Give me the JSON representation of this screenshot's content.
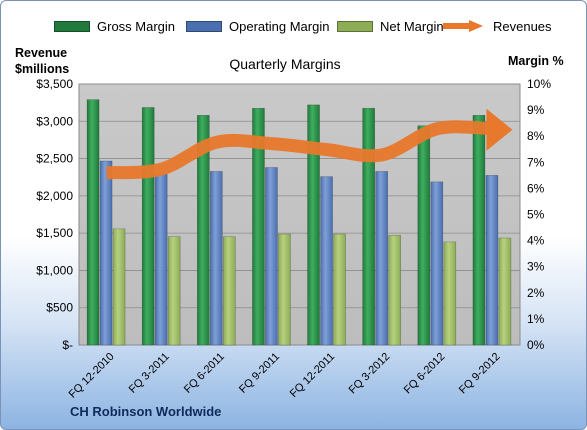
{
  "chart_data": {
    "type": "bar",
    "title": "Quarterly Margins",
    "left_axis_label_line1": "Revenue",
    "left_axis_label_line2": "$millions",
    "right_axis_label": "Margin %",
    "categories": [
      "FQ 12-2010",
      "FQ 3-2011",
      "FQ 6-2011",
      "FQ 9-2011",
      "FQ 12-2011",
      "FQ 3-2012",
      "FQ 6-2012",
      "FQ 9-2012"
    ],
    "left_ticks": [
      "$-",
      "$500",
      "$1,000",
      "$1,500",
      "$2,000",
      "$2,500",
      "$3,000",
      "$3,500"
    ],
    "right_ticks": [
      "0%",
      "1%",
      "2%",
      "3%",
      "4%",
      "5%",
      "6%",
      "7%",
      "8%",
      "9%",
      "10%"
    ],
    "ylim_left": [
      0,
      3500
    ],
    "ylim_right": [
      0,
      10
    ],
    "series": [
      {
        "name": "Gross Margin",
        "axis": "right",
        "values": [
          9.4,
          9.1,
          8.8,
          9.07,
          9.2,
          9.07,
          8.4,
          8.8
        ]
      },
      {
        "name": "Operating Margin",
        "axis": "right",
        "values": [
          7.05,
          6.55,
          6.65,
          6.8,
          6.45,
          6.65,
          6.25,
          6.5
        ]
      },
      {
        "name": "Net Margin",
        "axis": "right",
        "values": [
          4.45,
          4.15,
          4.15,
          4.25,
          4.25,
          4.2,
          3.95,
          4.1
        ]
      }
    ],
    "revenue_series": {
      "name": "Revenues",
      "axis": "left",
      "values": [
        2310,
        2360,
        2720,
        2700,
        2620,
        2550,
        2900,
        2900
      ]
    },
    "colors": {
      "gross": "#1f7a3c",
      "operating": "#4a6fb0",
      "net": "#8cac56",
      "revenue": "#e8782c",
      "plot_bg": "#c6c6c6",
      "company": "#0f2a5a"
    },
    "legend_position": "top",
    "grid": true
  },
  "footer": {
    "company": "CH Robinson Worldwide"
  }
}
